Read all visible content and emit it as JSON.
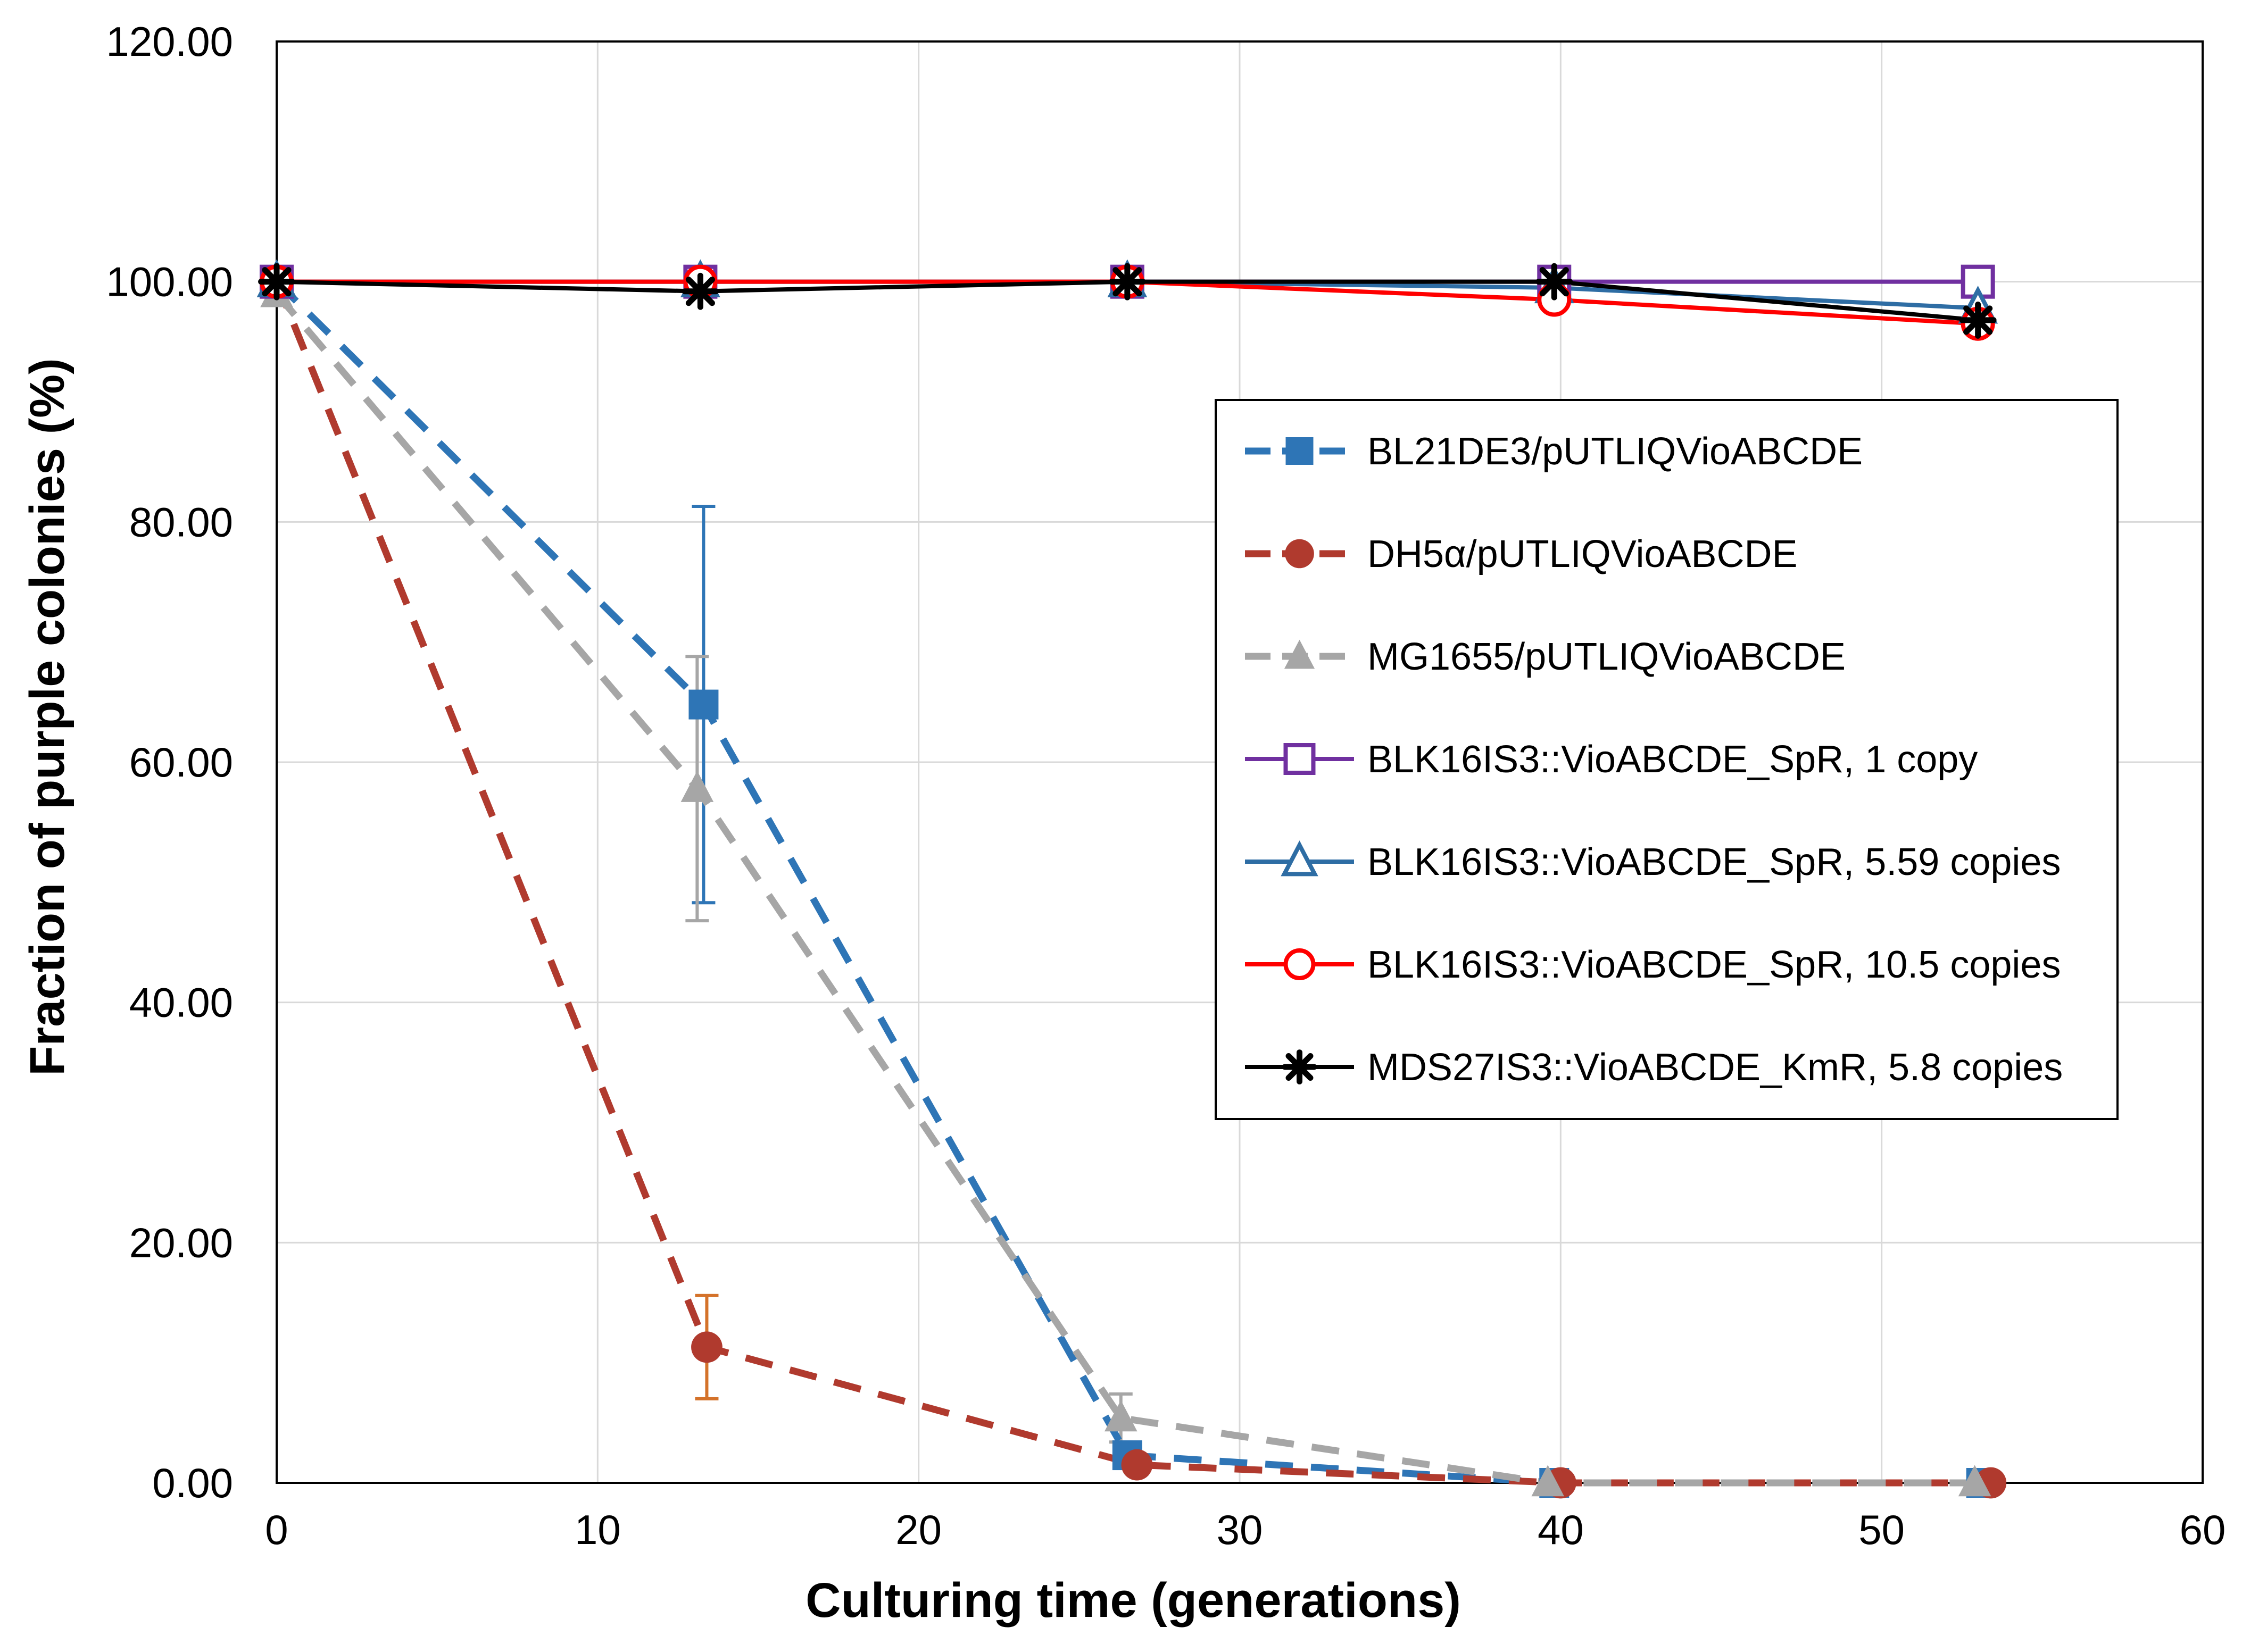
{
  "chart_data": {
    "type": "line",
    "title": "",
    "xlabel": "Culturing time (generations)",
    "ylabel": "Fraction of purple colonies (%)",
    "xlim": [
      0,
      60
    ],
    "ylim": [
      0,
      120
    ],
    "x_ticks": [
      0,
      10,
      20,
      30,
      40,
      50,
      60
    ],
    "y_ticks": [
      0,
      20,
      40,
      60,
      80,
      100,
      120
    ],
    "x_tick_labels": [
      "0",
      "10",
      "20",
      "30",
      "40",
      "50",
      "60"
    ],
    "y_tick_labels": [
      "0.00",
      "20.00",
      "40.00",
      "60.00",
      "80.00",
      "100.00",
      "120.00"
    ],
    "grid": true,
    "legend_position": "right",
    "series": [
      {
        "name": "BL21DE3/pUTLIQVioABCDE",
        "color": "#2E75B6",
        "dashed": true,
        "marker": "square-filled",
        "x": [
          0,
          13.3,
          26.5,
          39.8,
          53.1
        ],
        "y": [
          100,
          64.8,
          2.3,
          0,
          0
        ],
        "err": [
          null,
          16.5,
          null,
          null,
          null
        ],
        "err_color": "#2E75B6"
      },
      {
        "name": "DH5α/pUTLIQVioABCDE",
        "color": "#B03A2E",
        "dashed": true,
        "marker": "circle-filled",
        "x": [
          0,
          13.4,
          26.8,
          40.0,
          53.4
        ],
        "y": [
          100,
          11.3,
          1.5,
          0,
          0
        ],
        "err": [
          null,
          4.3,
          null,
          null,
          null
        ],
        "err_color": "#D4722A"
      },
      {
        "name": "MG1655/pUTLIQVioABCDE",
        "color": "#A6A6A6",
        "dashed": true,
        "marker": "triangle-filled",
        "x": [
          0,
          13.1,
          26.3,
          39.6,
          52.9
        ],
        "y": [
          99,
          57.8,
          5.4,
          0,
          0
        ],
        "err": [
          null,
          11,
          2,
          null,
          null
        ],
        "err_color": "#A6A6A6"
      },
      {
        "name": "BLK16IS3::VioABCDE_SpR, 1 copy",
        "color": "#7030A0",
        "dashed": false,
        "marker": "square-open",
        "x": [
          0,
          13.2,
          26.5,
          39.8,
          53.0
        ],
        "y": [
          100,
          100,
          100,
          100,
          100
        ]
      },
      {
        "name": "BLK16IS3::VioABCDE_SpR, 5.59 copies",
        "color": "#2E6DA4",
        "dashed": false,
        "marker": "triangle-open",
        "x": [
          0,
          13.2,
          26.5,
          39.8,
          53.0
        ],
        "y": [
          100,
          100,
          100,
          99.5,
          97.8
        ]
      },
      {
        "name": "BLK16IS3::VioABCDE_SpR, 10.5 copies",
        "color": "#FF0000",
        "dashed": false,
        "marker": "circle-open",
        "x": [
          0,
          13.2,
          26.5,
          39.8,
          53.0
        ],
        "y": [
          100,
          100,
          100,
          98.5,
          96.5
        ]
      },
      {
        "name": "MDS27IS3::VioABCDE_KmR, 5.8 copies",
        "color": "#000000",
        "dashed": false,
        "marker": "star",
        "x": [
          0,
          13.2,
          26.5,
          39.8,
          53.0
        ],
        "y": [
          100,
          99.2,
          100,
          100,
          96.8
        ]
      }
    ]
  }
}
